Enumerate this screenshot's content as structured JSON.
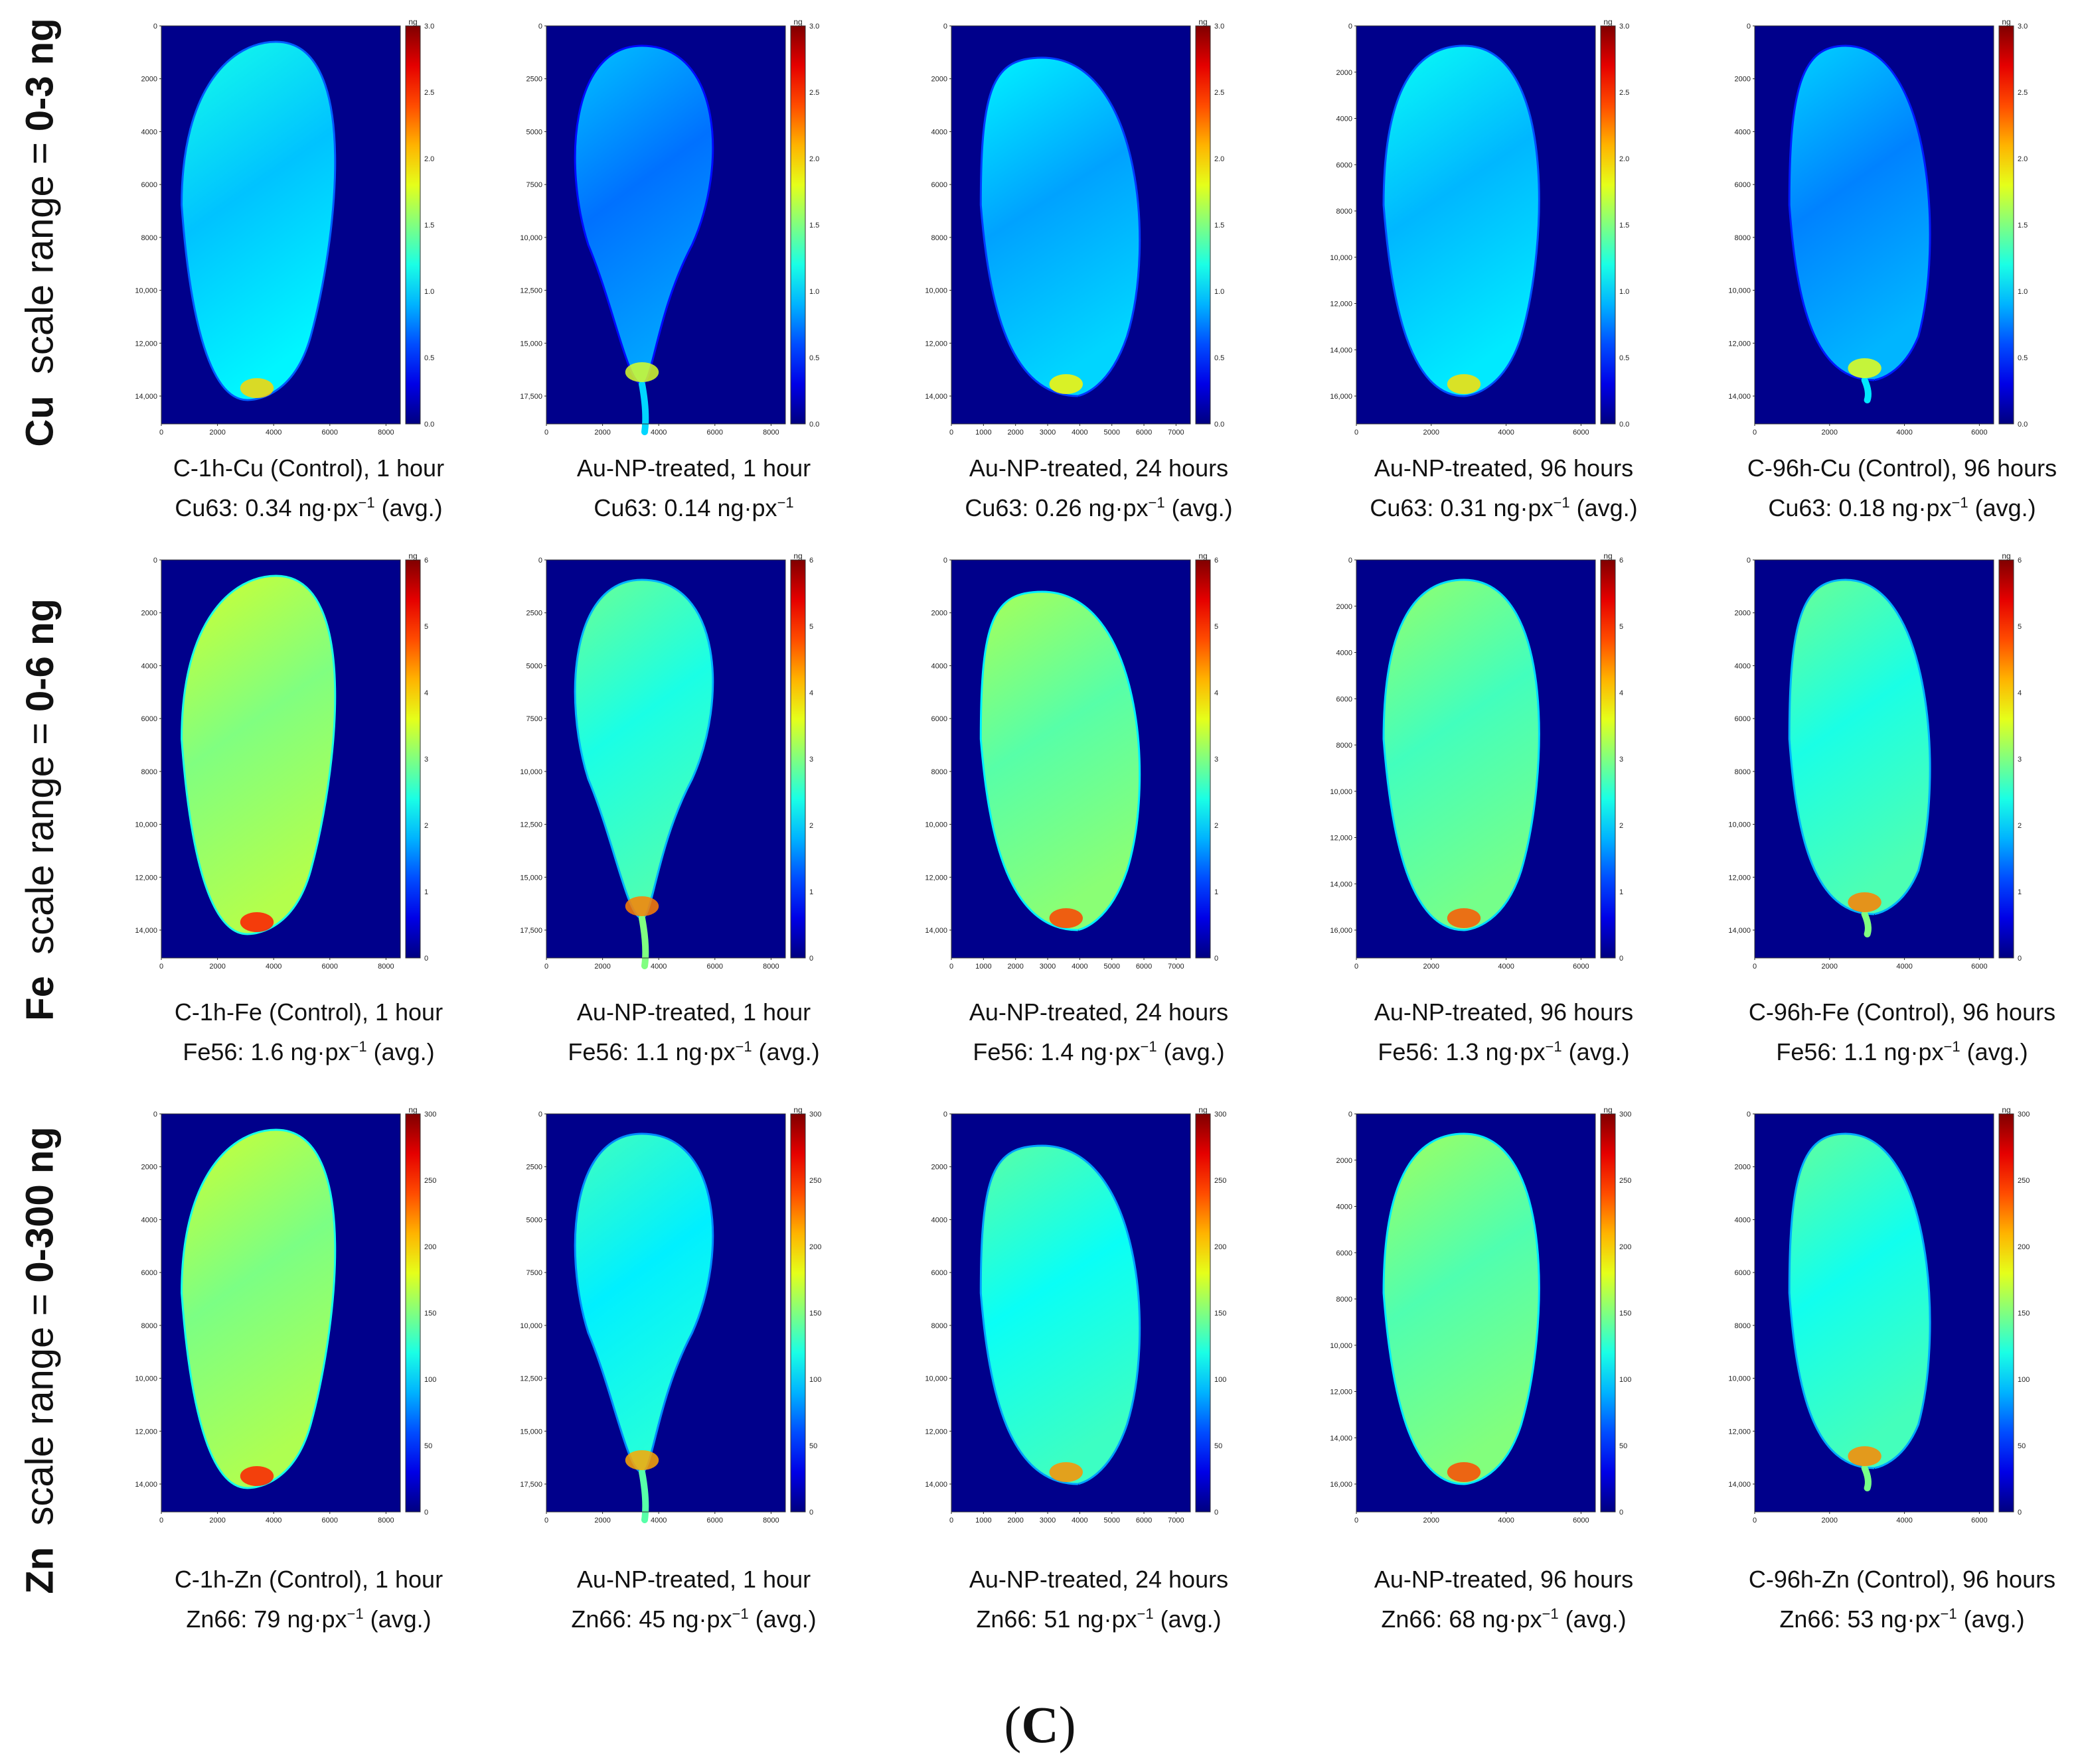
{
  "figure_label": {
    "open": "(",
    "letter": "C",
    "close": ")"
  },
  "rows": [
    {
      "element": "Cu",
      "text": "scale range = ",
      "range": "0-3 ng",
      "cbar_max": 3.0,
      "ticks": [
        "0.0",
        "0.5",
        "1.0",
        "1.5",
        "2.0",
        "2.5",
        "3.0"
      ]
    },
    {
      "element": "Fe",
      "text": "scale range = ",
      "range": "0-6 ng",
      "cbar_max": 6,
      "ticks": [
        "0",
        "1",
        "2",
        "3",
        "4",
        "5",
        "6"
      ]
    },
    {
      "element": "Zn",
      "text": "scale range = ",
      "range": "0-300 ng",
      "cbar_max": 300,
      "ticks": [
        "0",
        "50",
        "100",
        "150",
        "200",
        "250",
        "300"
      ]
    }
  ],
  "colorbar_unit": "ng",
  "chart_data": [
    {
      "type": "heatmap",
      "row": "Cu",
      "title": "C-1h-Cu (Control), 1 hour",
      "isotope": "Cu63",
      "mean": 0.34,
      "unit": "ng·px⁻¹",
      "avg": true,
      "sub_prefix": "Cu63: ",
      "sub_value": "0.34",
      "sub_unit": " ng·px",
      "sub_exp": "−1",
      "sub_suffix": " (avg.)",
      "yticks": [
        "0",
        "2000",
        "4000",
        "6000",
        "8000",
        "10,000",
        "12,000",
        "14,000"
      ],
      "xticks": [
        "0",
        "2000",
        "4000",
        "6000",
        "8000"
      ],
      "xlim": [
        0,
        8500
      ],
      "ylim": [
        15200,
        0
      ],
      "cbar_max": 3.0
    },
    {
      "type": "heatmap",
      "row": "Cu",
      "title": "Au-NP-treated, 1 hour",
      "isotope": "Cu63",
      "mean": 0.14,
      "unit": "ng·px⁻¹",
      "avg": false,
      "sub_prefix": "Cu63: ",
      "sub_value": "0.14",
      "sub_unit": " ng·px",
      "sub_exp": "−1",
      "sub_suffix": "",
      "yticks": [
        "0",
        "2500",
        "5000",
        "7500",
        "10,000",
        "12,500",
        "15,000",
        "17,500"
      ],
      "xticks": [
        "0",
        "2000",
        "4000",
        "6000",
        "8000"
      ],
      "xlim": [
        0,
        8500
      ],
      "ylim": [
        19000,
        0
      ],
      "cbar_max": 3.0
    },
    {
      "type": "heatmap",
      "row": "Cu",
      "title": "Au-NP-treated, 24 hours",
      "isotope": "Cu63",
      "mean": 0.26,
      "unit": "ng·px⁻¹",
      "avg": true,
      "sub_prefix": "Cu63: ",
      "sub_value": "0.26",
      "sub_unit": " ng·px",
      "sub_exp": "−1",
      "sub_suffix": " (avg.)",
      "yticks": [
        "0",
        "2000",
        "4000",
        "6000",
        "8000",
        "10,000",
        "12,000",
        "14,000"
      ],
      "xticks": [
        "0",
        "1000",
        "2000",
        "3000",
        "4000",
        "5000",
        "6000",
        "7000"
      ],
      "xlim": [
        0,
        7800
      ],
      "ylim": [
        14300,
        0
      ],
      "cbar_max": 3.0
    },
    {
      "type": "heatmap",
      "row": "Cu",
      "title": "Au-NP-treated, 96 hours",
      "isotope": "Cu63",
      "mean": 0.31,
      "unit": "ng·px⁻¹",
      "avg": true,
      "sub_prefix": "Cu63: ",
      "sub_value": "0.31",
      "sub_unit": " ng·px",
      "sub_exp": "−1",
      "sub_suffix": " (avg.)",
      "yticks": [
        "0",
        "2000",
        "4000",
        "6000",
        "8000",
        "10,000",
        "12,000",
        "14,000",
        "16,000"
      ],
      "xticks": [
        "0",
        "2000",
        "4000",
        "6000"
      ],
      "xlim": [
        0,
        7800
      ],
      "ylim": [
        16200,
        0
      ],
      "cbar_max": 3.0
    },
    {
      "type": "heatmap",
      "row": "Cu",
      "title": "C-96h-Cu (Control), 96 hours",
      "isotope": "Cu63",
      "mean": 0.18,
      "unit": "ng·px⁻¹",
      "avg": true,
      "sub_prefix": "Cu63: ",
      "sub_value": "0.18",
      "sub_unit": " ng·px",
      "sub_exp": "−1",
      "sub_suffix": " (avg.)",
      "yticks": [
        "0",
        "2000",
        "4000",
        "6000",
        "8000",
        "10,000",
        "12,000",
        "14,000"
      ],
      "xticks": [
        "0",
        "2000",
        "4000",
        "6000"
      ],
      "xlim": [
        0,
        7800
      ],
      "ylim": [
        15000,
        0
      ],
      "cbar_max": 3.0
    },
    {
      "type": "heatmap",
      "row": "Fe",
      "title": "C-1h-Fe (Control), 1 hour",
      "isotope": "Fe56",
      "mean": 1.6,
      "unit": "ng·px⁻¹",
      "avg": true,
      "sub_prefix": "Fe56: ",
      "sub_value": "1.6",
      "sub_unit": " ng·px",
      "sub_exp": "−1",
      "sub_suffix": " (avg.)",
      "yticks": [
        "0",
        "2000",
        "4000",
        "6000",
        "8000",
        "10,000",
        "12,000",
        "14,000"
      ],
      "xticks": [
        "0",
        "2000",
        "4000",
        "6000",
        "8000"
      ],
      "xlim": [
        0,
        8500
      ],
      "ylim": [
        15200,
        0
      ],
      "cbar_max": 6
    },
    {
      "type": "heatmap",
      "row": "Fe",
      "title": "Au-NP-treated, 1 hour",
      "isotope": "Fe56",
      "mean": 1.1,
      "unit": "ng·px⁻¹",
      "avg": true,
      "sub_prefix": "Fe56: ",
      "sub_value": "1.1",
      "sub_unit": " ng·px",
      "sub_exp": "−1",
      "sub_suffix": " (avg.)",
      "yticks": [
        "0",
        "2500",
        "5000",
        "7500",
        "10,000",
        "12,500",
        "15,000",
        "17,500"
      ],
      "xticks": [
        "0",
        "2000",
        "4000",
        "6000",
        "8000"
      ],
      "xlim": [
        0,
        8500
      ],
      "ylim": [
        19000,
        0
      ],
      "cbar_max": 6
    },
    {
      "type": "heatmap",
      "row": "Fe",
      "title": "Au-NP-treated, 24 hours",
      "isotope": "Fe56",
      "mean": 1.4,
      "unit": "ng·px⁻¹",
      "avg": true,
      "sub_prefix": "Fe56: ",
      "sub_value": "1.4",
      "sub_unit": " ng·px",
      "sub_exp": "−1",
      "sub_suffix": " (avg.)",
      "yticks": [
        "0",
        "2000",
        "4000",
        "6000",
        "8000",
        "10,000",
        "12,000",
        "14,000"
      ],
      "xticks": [
        "0",
        "1000",
        "2000",
        "3000",
        "4000",
        "5000",
        "6000",
        "7000"
      ],
      "xlim": [
        0,
        7800
      ],
      "ylim": [
        14300,
        0
      ],
      "cbar_max": 6
    },
    {
      "type": "heatmap",
      "row": "Fe",
      "title": "Au-NP-treated, 96 hours",
      "isotope": "Fe56",
      "mean": 1.3,
      "unit": "ng·px⁻¹",
      "avg": true,
      "sub_prefix": "Fe56: ",
      "sub_value": "1.3",
      "sub_unit": " ng·px",
      "sub_exp": "−1",
      "sub_suffix": " (avg.)",
      "yticks": [
        "0",
        "2000",
        "4000",
        "6000",
        "8000",
        "10,000",
        "12,000",
        "14,000",
        "16,000"
      ],
      "xticks": [
        "0",
        "2000",
        "4000",
        "6000"
      ],
      "xlim": [
        0,
        7800
      ],
      "ylim": [
        16200,
        0
      ],
      "cbar_max": 6
    },
    {
      "type": "heatmap",
      "row": "Fe",
      "title": "C-96h-Fe (Control), 96 hours",
      "isotope": "Fe56",
      "mean": 1.1,
      "unit": "ng·px⁻¹",
      "avg": true,
      "sub_prefix": "Fe56: ",
      "sub_value": "1.1",
      "sub_unit": " ng·px",
      "sub_exp": "−1",
      "sub_suffix": " (avg.)",
      "yticks": [
        "0",
        "2000",
        "4000",
        "6000",
        "8000",
        "10,000",
        "12,000",
        "14,000"
      ],
      "xticks": [
        "0",
        "2000",
        "4000",
        "6000"
      ],
      "xlim": [
        0,
        7800
      ],
      "ylim": [
        15000,
        0
      ],
      "cbar_max": 6
    },
    {
      "type": "heatmap",
      "row": "Zn",
      "title": "C-1h-Zn (Control), 1 hour",
      "isotope": "Zn66",
      "mean": 79,
      "unit": "ng·px⁻¹",
      "avg": true,
      "sub_prefix": "Zn66: ",
      "sub_value": "79",
      "sub_unit": " ng·px",
      "sub_exp": "−1",
      "sub_suffix": " (avg.)",
      "yticks": [
        "0",
        "2000",
        "4000",
        "6000",
        "8000",
        "10,000",
        "12,000",
        "14,000"
      ],
      "xticks": [
        "0",
        "2000",
        "4000",
        "6000",
        "8000"
      ],
      "xlim": [
        0,
        8500
      ],
      "ylim": [
        15200,
        0
      ],
      "cbar_max": 300
    },
    {
      "type": "heatmap",
      "row": "Zn",
      "title": "Au-NP-treated, 1 hour",
      "isotope": "Zn66",
      "mean": 45,
      "unit": "ng·px⁻¹",
      "avg": true,
      "sub_prefix": "Zn66: ",
      "sub_value": "45",
      "sub_unit": " ng·px",
      "sub_exp": "−1",
      "sub_suffix": " (avg.)",
      "yticks": [
        "0",
        "2500",
        "5000",
        "7500",
        "10,000",
        "12,500",
        "15,000",
        "17,500"
      ],
      "xticks": [
        "0",
        "2000",
        "4000",
        "6000",
        "8000"
      ],
      "xlim": [
        0,
        8500
      ],
      "ylim": [
        19000,
        0
      ],
      "cbar_max": 300
    },
    {
      "type": "heatmap",
      "row": "Zn",
      "title": "Au-NP-treated, 24 hours",
      "isotope": "Zn66",
      "mean": 51,
      "unit": "ng·px⁻¹",
      "avg": true,
      "sub_prefix": "Zn66: ",
      "sub_value": "51",
      "sub_unit": " ng·px",
      "sub_exp": "−1",
      "sub_suffix": " (avg.)",
      "yticks": [
        "0",
        "2000",
        "4000",
        "6000",
        "8000",
        "10,000",
        "12,000",
        "14,000"
      ],
      "xticks": [
        "0",
        "1000",
        "2000",
        "3000",
        "4000",
        "5000",
        "6000",
        "7000"
      ],
      "xlim": [
        0,
        7800
      ],
      "ylim": [
        14300,
        0
      ],
      "cbar_max": 300
    },
    {
      "type": "heatmap",
      "row": "Zn",
      "title": "Au-NP-treated, 96 hours",
      "isotope": "Zn66",
      "mean": 68,
      "unit": "ng·px⁻¹",
      "avg": true,
      "sub_prefix": "Zn66: ",
      "sub_value": "68",
      "sub_unit": " ng·px",
      "sub_exp": "−1",
      "sub_suffix": " (avg.)",
      "yticks": [
        "0",
        "2000",
        "4000",
        "6000",
        "8000",
        "10,000",
        "12,000",
        "14,000",
        "16,000"
      ],
      "xticks": [
        "0",
        "2000",
        "4000",
        "6000"
      ],
      "xlim": [
        0,
        7800
      ],
      "ylim": [
        16200,
        0
      ],
      "cbar_max": 300
    },
    {
      "type": "heatmap",
      "row": "Zn",
      "title": "C-96h-Zn (Control), 96 hours",
      "isotope": "Zn66",
      "mean": 53,
      "unit": "ng·px⁻¹",
      "avg": true,
      "sub_prefix": "Zn66: ",
      "sub_value": "53",
      "sub_unit": " ng·px",
      "sub_exp": "−1",
      "sub_suffix": " (avg.)",
      "yticks": [
        "0",
        "2000",
        "4000",
        "6000",
        "8000",
        "10,000",
        "12,000",
        "14,000"
      ],
      "xticks": [
        "0",
        "2000",
        "4000",
        "6000"
      ],
      "xlim": [
        0,
        7800
      ],
      "ylim": [
        15000,
        0
      ],
      "cbar_max": 300
    }
  ],
  "colors": {
    "background": "#00008b",
    "leaf_low": "#2f6bff",
    "leaf_mid": "#1fd2c8",
    "leaf_high": "#ffa000",
    "hot": "#c00000"
  }
}
